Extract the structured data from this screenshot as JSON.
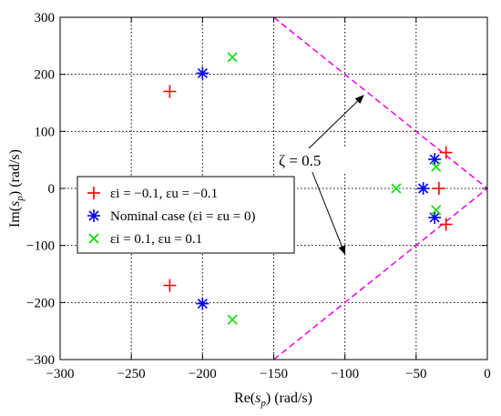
{
  "chart_data": {
    "type": "scatter",
    "xlabel": "Re(s_p) (rad/s)",
    "ylabel": "Im(s_p) (rad/s)",
    "xlim": [
      -300,
      0
    ],
    "ylim": [
      -300,
      300
    ],
    "xticks": [
      -300,
      -250,
      -200,
      -150,
      -100,
      -50,
      0
    ],
    "yticks": [
      -300,
      -200,
      -100,
      0,
      100,
      200,
      300
    ],
    "xtick_labels": [
      "−300",
      "−250",
      "−200",
      "−150",
      "−100",
      "−50",
      "0"
    ],
    "ytick_labels": [
      "−300",
      "−200",
      "−100",
      "0",
      "100",
      "200",
      "300"
    ],
    "grid": true,
    "legend_position": "center-left",
    "series": [
      {
        "name": "εi = −0.1, εu = −0.1",
        "marker": "plus",
        "color": "#ff0000",
        "points": [
          [
            -223,
            170
          ],
          [
            -223,
            -170
          ],
          [
            -29,
            63
          ],
          [
            -29,
            -63
          ],
          [
            -34,
            0
          ]
        ]
      },
      {
        "name": "Nominal case (εi = εu = 0)",
        "marker": "asterisk",
        "color": "#0000ff",
        "points": [
          [
            -200,
            202
          ],
          [
            -200,
            -202
          ],
          [
            -37,
            51
          ],
          [
            -37,
            -51
          ],
          [
            -45,
            0
          ]
        ]
      },
      {
        "name": "εi = 0.1, εu = 0.1",
        "marker": "cross",
        "color": "#00dd00",
        "points": [
          [
            -179,
            230
          ],
          [
            -179,
            -230
          ],
          [
            -36,
            38
          ],
          [
            -36,
            -38
          ],
          [
            -64,
            0
          ]
        ]
      }
    ],
    "damping_line": {
      "color": "#ee00ee",
      "points": [
        [
          -150,
          300
        ],
        [
          0,
          0
        ],
        [
          -150,
          -300
        ]
      ]
    },
    "annotation": {
      "text": "ζ = 0.5",
      "arrow_targets": [
        [
          -87,
          163
        ],
        [
          -100,
          -115
        ]
      ]
    }
  }
}
